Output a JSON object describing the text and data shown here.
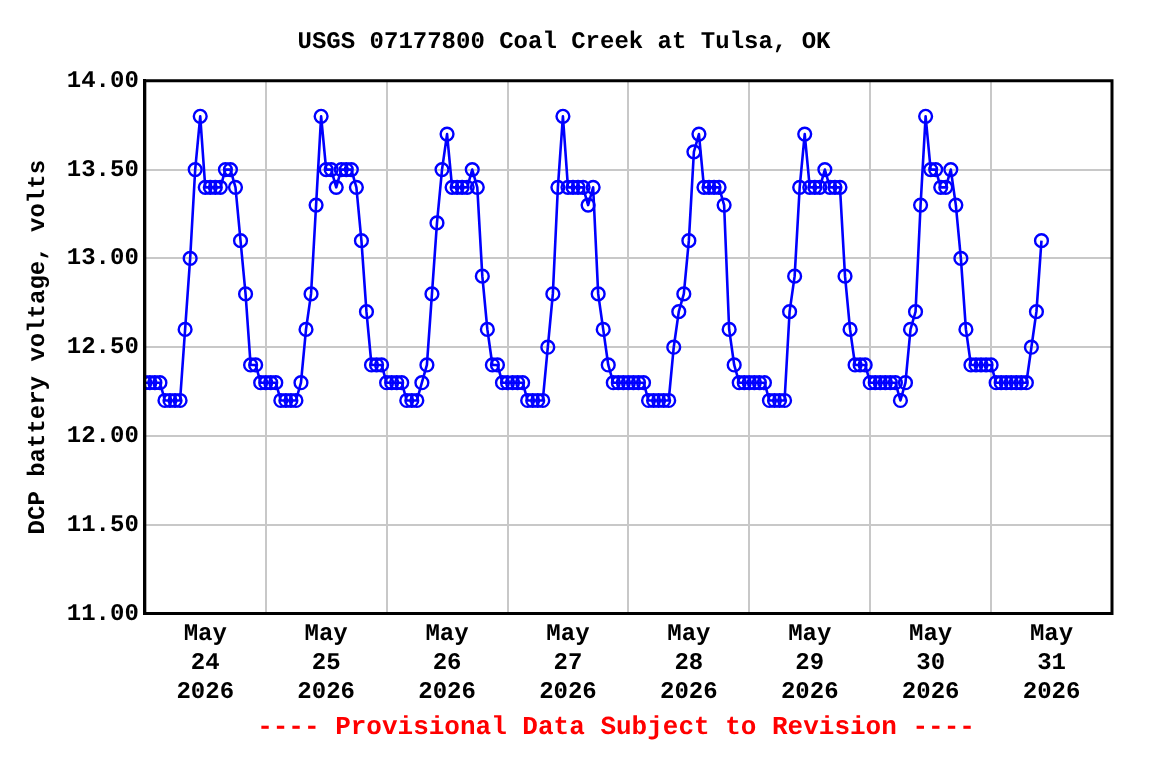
{
  "chart_data": {
    "type": "line",
    "title": "USGS 07177800 Coal Creek at Tulsa, OK",
    "ylabel": "DCP battery voltage, volts",
    "annotations": [
      "---- Provisional Data Subject to Revision ----"
    ],
    "xlim": [
      "2026-05-24T00:00",
      "2026-06-01T00:00"
    ],
    "xticks": [
      {
        "value": "2026-05-24T12:00",
        "label": "May 24 2026"
      },
      {
        "value": "2026-05-25T00:00",
        "label": null
      },
      {
        "value": "2026-05-25T12:00",
        "label": "May 25 2026"
      },
      {
        "value": "2026-05-26T00:00",
        "label": null
      },
      {
        "value": "2026-05-26T12:00",
        "label": "May 26 2026"
      },
      {
        "value": "2026-05-27T00:00",
        "label": null
      },
      {
        "value": "2026-05-27T12:00",
        "label": "May 27 2026"
      },
      {
        "value": "2026-05-28T00:00",
        "label": null
      },
      {
        "value": "2026-05-28T12:00",
        "label": "May 28 2026"
      },
      {
        "value": "2026-05-29T00:00",
        "label": null
      },
      {
        "value": "2026-05-29T12:00",
        "label": "May 29 2026"
      },
      {
        "value": "2026-05-30T00:00",
        "label": null
      },
      {
        "value": "2026-05-30T12:00",
        "label": "May 30 2026"
      },
      {
        "value": "2026-05-31T00:00",
        "label": null
      },
      {
        "value": "2026-05-31T12:00",
        "label": "May 31 2026"
      }
    ],
    "ylim": [
      11,
      14
    ],
    "yticks": [
      {
        "value": 11,
        "label": "11.00"
      },
      {
        "value": 11.5,
        "label": "11.50"
      },
      {
        "value": 12,
        "label": "12.00"
      },
      {
        "value": 12.5,
        "label": "12.50"
      },
      {
        "value": 13,
        "label": "13.00"
      },
      {
        "value": 13.5,
        "label": "13.50"
      },
      {
        "value": 14,
        "label": "14.00"
      }
    ],
    "grid": true,
    "marker": "circle",
    "line_style": "solid",
    "series": [
      {
        "color": "#0000ff",
        "x": [
          "2026-05-24T00:00",
          "2026-05-24T01:00",
          "2026-05-24T02:00",
          "2026-05-24T03:00",
          "2026-05-24T04:00",
          "2026-05-24T05:00",
          "2026-05-24T06:00",
          "2026-05-24T07:00",
          "2026-05-24T08:00",
          "2026-05-24T09:00",
          "2026-05-24T10:00",
          "2026-05-24T11:00",
          "2026-05-24T12:00",
          "2026-05-24T13:00",
          "2026-05-24T14:00",
          "2026-05-24T15:00",
          "2026-05-24T16:00",
          "2026-05-24T17:00",
          "2026-05-24T18:00",
          "2026-05-24T19:00",
          "2026-05-24T20:00",
          "2026-05-24T21:00",
          "2026-05-24T22:00",
          "2026-05-24T23:00",
          "2026-05-25T00:00",
          "2026-05-25T01:00",
          "2026-05-25T02:00",
          "2026-05-25T03:00",
          "2026-05-25T04:00",
          "2026-05-25T05:00",
          "2026-05-25T06:00",
          "2026-05-25T07:00",
          "2026-05-25T08:00",
          "2026-05-25T09:00",
          "2026-05-25T10:00",
          "2026-05-25T11:00",
          "2026-05-25T12:00",
          "2026-05-25T13:00",
          "2026-05-25T14:00",
          "2026-05-25T15:00",
          "2026-05-25T16:00",
          "2026-05-25T17:00",
          "2026-05-25T18:00",
          "2026-05-25T19:00",
          "2026-05-25T20:00",
          "2026-05-25T21:00",
          "2026-05-25T22:00",
          "2026-05-25T23:00",
          "2026-05-26T00:00",
          "2026-05-26T01:00",
          "2026-05-26T02:00",
          "2026-05-26T03:00",
          "2026-05-26T04:00",
          "2026-05-26T05:00",
          "2026-05-26T06:00",
          "2026-05-26T07:00",
          "2026-05-26T08:00",
          "2026-05-26T09:00",
          "2026-05-26T10:00",
          "2026-05-26T11:00",
          "2026-05-26T12:00",
          "2026-05-26T13:00",
          "2026-05-26T14:00",
          "2026-05-26T15:00",
          "2026-05-26T16:00",
          "2026-05-26T17:00",
          "2026-05-26T18:00",
          "2026-05-26T19:00",
          "2026-05-26T20:00",
          "2026-05-26T21:00",
          "2026-05-26T22:00",
          "2026-05-26T23:00",
          "2026-05-27T00:00",
          "2026-05-27T01:00",
          "2026-05-27T02:00",
          "2026-05-27T03:00",
          "2026-05-27T04:00",
          "2026-05-27T05:00",
          "2026-05-27T06:00",
          "2026-05-27T07:00",
          "2026-05-27T08:00",
          "2026-05-27T09:00",
          "2026-05-27T10:00",
          "2026-05-27T11:00",
          "2026-05-27T12:00",
          "2026-05-27T13:00",
          "2026-05-27T14:00",
          "2026-05-27T15:00",
          "2026-05-27T16:00",
          "2026-05-27T17:00",
          "2026-05-27T18:00",
          "2026-05-27T19:00",
          "2026-05-27T20:00",
          "2026-05-27T21:00",
          "2026-05-27T22:00",
          "2026-05-27T23:00",
          "2026-05-28T00:00",
          "2026-05-28T01:00",
          "2026-05-28T02:00",
          "2026-05-28T03:00",
          "2026-05-28T04:00",
          "2026-05-28T05:00",
          "2026-05-28T06:00",
          "2026-05-28T07:00",
          "2026-05-28T08:00",
          "2026-05-28T09:00",
          "2026-05-28T10:00",
          "2026-05-28T11:00",
          "2026-05-28T12:00",
          "2026-05-28T13:00",
          "2026-05-28T14:00",
          "2026-05-28T15:00",
          "2026-05-28T16:00",
          "2026-05-28T17:00",
          "2026-05-28T18:00",
          "2026-05-28T19:00",
          "2026-05-28T20:00",
          "2026-05-28T21:00",
          "2026-05-28T22:00",
          "2026-05-28T23:00",
          "2026-05-29T00:00",
          "2026-05-29T01:00",
          "2026-05-29T02:00",
          "2026-05-29T03:00",
          "2026-05-29T04:00",
          "2026-05-29T05:00",
          "2026-05-29T06:00",
          "2026-05-29T07:00",
          "2026-05-29T08:00",
          "2026-05-29T09:00",
          "2026-05-29T10:00",
          "2026-05-29T11:00",
          "2026-05-29T12:00",
          "2026-05-29T13:00",
          "2026-05-29T14:00",
          "2026-05-29T15:00",
          "2026-05-29T16:00",
          "2026-05-29T17:00",
          "2026-05-29T18:00",
          "2026-05-29T19:00",
          "2026-05-29T20:00",
          "2026-05-29T21:00",
          "2026-05-29T22:00",
          "2026-05-29T23:00",
          "2026-05-30T00:00",
          "2026-05-30T01:00",
          "2026-05-30T02:00",
          "2026-05-30T03:00",
          "2026-05-30T04:00",
          "2026-05-30T05:00",
          "2026-05-30T06:00",
          "2026-05-30T07:00",
          "2026-05-30T08:00",
          "2026-05-30T09:00",
          "2026-05-30T10:00",
          "2026-05-30T11:00",
          "2026-05-30T12:00",
          "2026-05-30T13:00",
          "2026-05-30T14:00",
          "2026-05-30T15:00",
          "2026-05-30T16:00",
          "2026-05-30T17:00",
          "2026-05-30T18:00",
          "2026-05-30T19:00",
          "2026-05-30T20:00",
          "2026-05-30T21:00",
          "2026-05-30T22:00",
          "2026-05-30T23:00",
          "2026-05-31T00:00",
          "2026-05-31T01:00",
          "2026-05-31T02:00",
          "2026-05-31T03:00",
          "2026-05-31T04:00",
          "2026-05-31T05:00",
          "2026-05-31T06:00",
          "2026-05-31T07:00",
          "2026-05-31T08:00",
          "2026-05-31T09:00",
          "2026-05-31T10:00"
        ],
        "values": [
          12.3,
          12.3,
          12.3,
          12.3,
          12.2,
          12.2,
          12.2,
          12.2,
          12.6,
          13.0,
          13.5,
          13.8,
          13.4,
          13.4,
          13.4,
          13.4,
          13.5,
          13.5,
          13.4,
          13.1,
          12.8,
          12.4,
          12.4,
          12.3,
          12.3,
          12.3,
          12.3,
          12.2,
          12.2,
          12.2,
          12.2,
          12.3,
          12.6,
          12.8,
          13.3,
          13.8,
          13.5,
          13.5,
          13.4,
          13.5,
          13.5,
          13.5,
          13.4,
          13.1,
          12.7,
          12.4,
          12.4,
          12.4,
          12.3,
          12.3,
          12.3,
          12.3,
          12.2,
          12.2,
          12.2,
          12.3,
          12.4,
          12.8,
          13.2,
          13.5,
          13.7,
          13.4,
          13.4,
          13.4,
          13.4,
          13.5,
          13.4,
          12.9,
          12.6,
          12.4,
          12.4,
          12.3,
          12.3,
          12.3,
          12.3,
          12.3,
          12.2,
          12.2,
          12.2,
          12.2,
          12.5,
          12.8,
          13.4,
          13.8,
          13.4,
          13.4,
          13.4,
          13.4,
          13.3,
          13.4,
          12.8,
          12.6,
          12.4,
          12.3,
          12.3,
          12.3,
          12.3,
          12.3,
          12.3,
          12.3,
          12.2,
          12.2,
          12.2,
          12.2,
          12.2,
          12.5,
          12.7,
          12.8,
          13.1,
          13.6,
          13.7,
          13.4,
          13.4,
          13.4,
          13.4,
          13.3,
          12.6,
          12.4,
          12.3,
          12.3,
          12.3,
          12.3,
          12.3,
          12.3,
          12.2,
          12.2,
          12.2,
          12.2,
          12.7,
          12.9,
          13.4,
          13.7,
          13.4,
          13.4,
          13.4,
          13.5,
          13.4,
          13.4,
          13.4,
          12.9,
          12.6,
          12.4,
          12.4,
          12.4,
          12.3,
          12.3,
          12.3,
          12.3,
          12.3,
          12.3,
          12.2,
          12.3,
          12.6,
          12.7,
          13.3,
          13.8,
          13.5,
          13.5,
          13.4,
          13.4,
          13.5,
          13.3,
          13.0,
          12.6,
          12.4,
          12.4,
          12.4,
          12.4,
          12.4,
          12.3,
          12.3,
          12.3,
          12.3,
          12.3,
          12.3,
          12.3,
          12.5,
          12.7,
          13.1
        ]
      }
    ]
  }
}
